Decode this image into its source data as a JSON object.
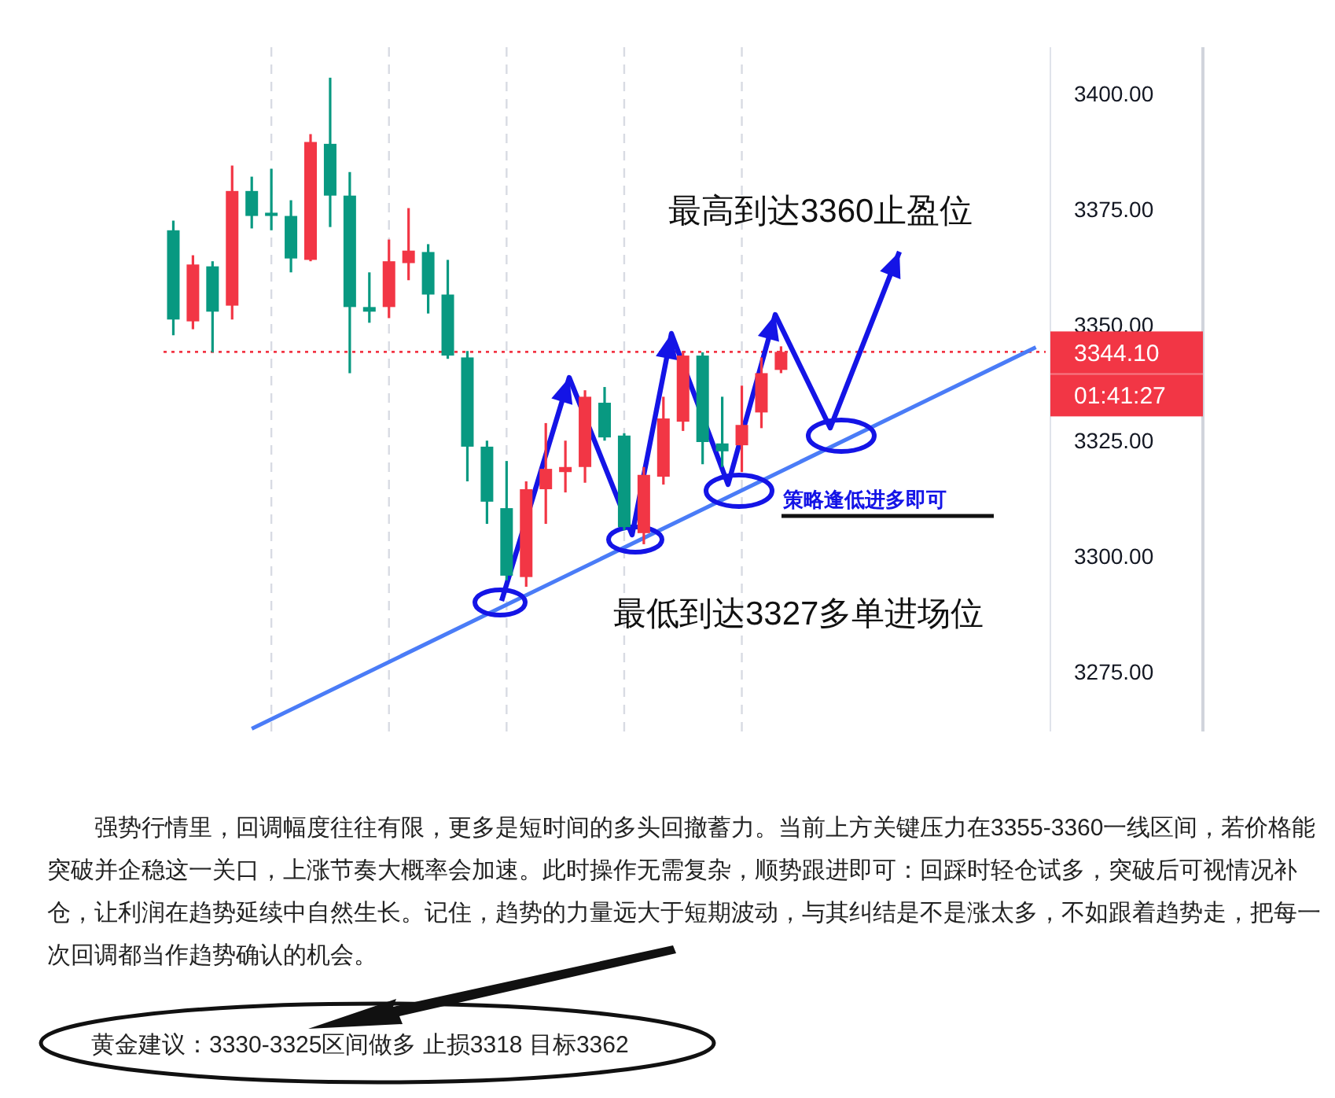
{
  "chart_data": {
    "type": "candlestick",
    "categories": [
      null,
      null,
      null,
      null,
      null,
      null,
      null,
      null,
      null,
      null,
      null,
      null,
      null,
      null,
      null,
      null,
      null,
      null,
      null,
      null,
      null,
      null,
      null,
      null,
      null,
      null,
      null,
      null,
      null,
      null,
      null,
      null,
      null,
      null,
      null,
      null,
      null,
      null,
      null,
      null,
      null,
      null,
      null,
      null,
      null
    ],
    "ohlc": [
      [
        3370.4,
        3372.5,
        3347.7,
        3351.1
      ],
      [
        3350.7,
        3365.0,
        3349.0,
        3363.0
      ],
      [
        3362.6,
        3363.7,
        3344.0,
        3352.8
      ],
      [
        3354.1,
        3384.4,
        3351.1,
        3378.9
      ],
      [
        3378.9,
        3382.0,
        3370.8,
        3373.5
      ],
      [
        3374.2,
        3383.7,
        3370.4,
        3373.5
      ],
      [
        3373.5,
        3376.9,
        3361.3,
        3364.3
      ],
      [
        3364.0,
        3391.2,
        3363.7,
        3389.5
      ],
      [
        3389.1,
        3403.4,
        3371.1,
        3377.9
      ],
      [
        3377.9,
        3383.0,
        3339.5,
        3353.8
      ],
      [
        3353.8,
        3361.3,
        3350.4,
        3352.8
      ],
      [
        3353.8,
        3368.4,
        3351.4,
        3363.7
      ],
      [
        3363.3,
        3375.2,
        3359.6,
        3366.0
      ],
      [
        3365.7,
        3367.4,
        3352.4,
        3356.5
      ],
      [
        3356.5,
        3364.0,
        3342.6,
        3343.3
      ],
      [
        3342.9,
        3344.3,
        3316.1,
        3323.6
      ],
      [
        3323.6,
        3324.9,
        3306.9,
        3311.7
      ],
      [
        3310.3,
        3320.5,
        3294.7,
        3295.7
      ],
      [
        3295.4,
        3316.1,
        3293.3,
        3314.4
      ],
      [
        3314.4,
        3328.7,
        3306.9,
        3318.8
      ],
      [
        3318.1,
        3324.9,
        3313.7,
        3319.2
      ],
      [
        3319.2,
        3335.8,
        3315.8,
        3334.4
      ],
      [
        3333.1,
        3336.5,
        3324.9,
        3325.6
      ],
      [
        3326.0,
        3326.5,
        3305.5,
        3306.2
      ],
      [
        3304.9,
        3319.2,
        3302.5,
        3317.5
      ],
      [
        3317.1,
        3334.4,
        3315.4,
        3329.7
      ],
      [
        3329.0,
        3344.3,
        3327.0,
        3343.3
      ],
      [
        3343.3,
        3344.0,
        3319.8,
        3324.6
      ],
      [
        3324.3,
        3334.4,
        3319.2,
        3322.6
      ],
      [
        3323.9,
        3336.8,
        3318.1,
        3328.3
      ],
      [
        3331.0,
        3342.9,
        3327.6,
        3339.5
      ],
      [
        3340.2,
        3345.3,
        3339.5,
        3344.1
      ],
      null,
      null,
      null,
      null,
      null,
      null,
      null,
      null,
      null,
      null,
      null,
      null,
      null
    ],
    "colors": [
      "#089981",
      "#f23645",
      "#089981",
      "#f23645",
      "#089981",
      "#089981",
      "#089981",
      "#f23645",
      "#089981",
      "#089981",
      "#089981",
      "#f23645",
      "#f23645",
      "#089981",
      "#089981",
      "#089981",
      "#089981",
      "#089981",
      "#f23645",
      "#f23645",
      "#f23645",
      "#f23645",
      "#089981",
      "#089981",
      "#f23645",
      "#f23645",
      "#f23645",
      "#089981",
      "#089981",
      "#f23645",
      "#f23645",
      "#f23645",
      null,
      null,
      null,
      null,
      null,
      null,
      null,
      null,
      null,
      null,
      null,
      null,
      null
    ],
    "series": [
      {
        "type": "line",
        "values": [
          null,
          null,
          null,
          null,
          3262.6,
          null,
          null,
          null,
          null,
          null,
          null,
          null,
          null,
          null,
          null,
          null,
          null,
          null,
          null,
          null,
          null,
          null,
          null,
          null,
          null,
          null,
          null,
          null,
          null,
          null,
          null,
          null,
          null,
          null,
          null,
          null,
          null,
          null,
          null,
          null,
          null,
          null,
          null,
          null,
          3345.1
        ],
        "color": "#4a7cf7"
      }
    ],
    "ylim": [
      3262,
      3410
    ],
    "yticks": [
      {
        "value": 3275,
        "label": "3275.00"
      },
      {
        "value": 3300,
        "label": "3300.00"
      },
      {
        "value": 3325,
        "label": "3325.00"
      },
      {
        "value": 3350,
        "label": "3350.00"
      },
      {
        "value": 3375,
        "label": "3375.00"
      },
      {
        "value": 3400,
        "label": "3400.00"
      }
    ],
    "tick_labels": "y",
    "grid": "x",
    "ref_lines": [
      {
        "axis": "y",
        "value": 3344.1,
        "label": "3344.10",
        "color": "#f23645",
        "line_style": "dotted"
      }
    ],
    "annotations": [
      "最高到达3360止盈位",
      "最低到达3327多单进场位",
      "策略逢低进多即可",
      "01:41:27",
      "强势行情里，回调幅度往往有限，更多是短时间的多头回撤蓄力。当前上方关键压力在3355-3360一线区间，若价格能突破并企稳这一关口，上涨节奏大概率会加速。此时操作无需复杂，顺势跟进即可：回踩时轻仓试多，突破后可视情况补仓，让利润在趋势延续中自然生长。记住，趋势的力量远大于短期波动，与其纠结是不是涨太多，不如跟着趋势走，把每一次回调都当作趋势确认的机会。",
      "黄金建议：3330-3325区间做多 止损3318 目标3362"
    ]
  }
}
